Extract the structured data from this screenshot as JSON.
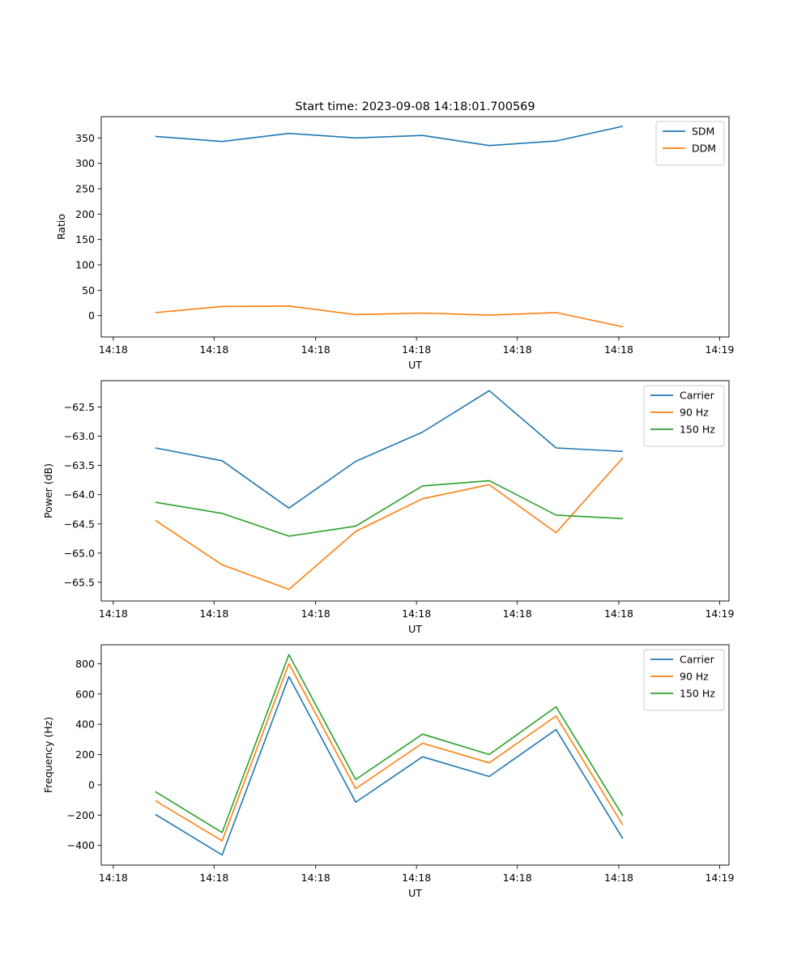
{
  "figure": {
    "title": "Start time: 2023-09-08 14:18:01.700569"
  },
  "chart_data": [
    {
      "type": "line",
      "xlabel": "UT",
      "ylabel": "Ratio",
      "x_tick_labels": [
        "14:18",
        "14:18",
        "14:18",
        "14:18",
        "14:18",
        "14:18",
        "14:18"
      ],
      "x_last_tick_label": "14:19",
      "x": [
        1,
        2,
        3,
        4,
        5,
        6,
        7,
        8
      ],
      "xlim": [
        0.19,
        9.59
      ],
      "x_ticks": [
        0.37,
        1.88,
        3.4,
        4.91,
        6.42,
        7.94,
        9.45
      ],
      "ylim": [
        -42,
        392
      ],
      "y_ticks": [
        0,
        50,
        100,
        150,
        200,
        250,
        300,
        350
      ],
      "legend": "top-right",
      "series": [
        {
          "name": "SDM",
          "color": "#1f77b4",
          "values": [
            353,
            343,
            359,
            350,
            355,
            335,
            344,
            373
          ]
        },
        {
          "name": "DDM",
          "color": "#ff7f0e",
          "values": [
            6,
            18,
            19,
            2,
            5,
            1,
            6,
            -22
          ]
        }
      ]
    },
    {
      "type": "line",
      "xlabel": "UT",
      "ylabel": "Power (dB)",
      "x_tick_labels": [
        "14:18",
        "14:18",
        "14:18",
        "14:18",
        "14:18",
        "14:18",
        "14:18"
      ],
      "x_last_tick_label": "14:19",
      "x": [
        1,
        2,
        3,
        4,
        5,
        6,
        7,
        8
      ],
      "xlim": [
        0.19,
        9.59
      ],
      "x_ticks": [
        0.37,
        1.88,
        3.4,
        4.91,
        6.42,
        7.94,
        9.45
      ],
      "ylim": [
        -65.82,
        -62.05
      ],
      "y_ticks": [
        -65.5,
        -65.0,
        -64.5,
        -64.0,
        -63.5,
        -63.0,
        -62.5
      ],
      "y_tick_labels": [
        "−65.5",
        "−65.0",
        "−64.5",
        "−64.0",
        "−63.5",
        "−63.0",
        "−62.5"
      ],
      "legend": "top-right",
      "series": [
        {
          "name": "Carrier",
          "color": "#1f77b4",
          "values": [
            -63.2,
            -63.42,
            -64.23,
            -63.43,
            -62.93,
            -62.22,
            -63.2,
            -63.26
          ]
        },
        {
          "name": "90 Hz",
          "color": "#ff7f0e",
          "values": [
            -64.44,
            -65.2,
            -65.62,
            -64.63,
            -64.07,
            -63.83,
            -64.65,
            -63.37
          ]
        },
        {
          "name": "150 Hz",
          "color": "#2ca02c",
          "values": [
            -64.13,
            -64.32,
            -64.71,
            -64.54,
            -63.85,
            -63.76,
            -64.35,
            -64.41
          ]
        }
      ]
    },
    {
      "type": "line",
      "xlabel": "UT",
      "ylabel": "Frequency (Hz)",
      "x_tick_labels": [
        "14:18",
        "14:18",
        "14:18",
        "14:18",
        "14:18",
        "14:18",
        "14:18"
      ],
      "x_last_tick_label": "14:19",
      "x": [
        1,
        2,
        3,
        4,
        5,
        6,
        7,
        8
      ],
      "xlim": [
        0.19,
        9.59
      ],
      "x_ticks": [
        0.37,
        1.88,
        3.4,
        4.91,
        6.42,
        7.94,
        9.45
      ],
      "ylim": [
        -530,
        925
      ],
      "y_ticks": [
        -400,
        -200,
        0,
        200,
        400,
        600,
        800
      ],
      "y_tick_labels": [
        "−400",
        "−200",
        "0",
        "200",
        "400",
        "600",
        "800"
      ],
      "legend": "top-right",
      "series": [
        {
          "name": "Carrier",
          "color": "#1f77b4",
          "values": [
            -195,
            -463,
            715,
            -115,
            185,
            55,
            365,
            -355
          ]
        },
        {
          "name": "90 Hz",
          "color": "#ff7f0e",
          "values": [
            -105,
            -370,
            800,
            -25,
            275,
            145,
            455,
            -265
          ]
        },
        {
          "name": "150 Hz",
          "color": "#2ca02c",
          "values": [
            -45,
            -315,
            860,
            35,
            335,
            200,
            515,
            -205
          ]
        }
      ]
    }
  ]
}
